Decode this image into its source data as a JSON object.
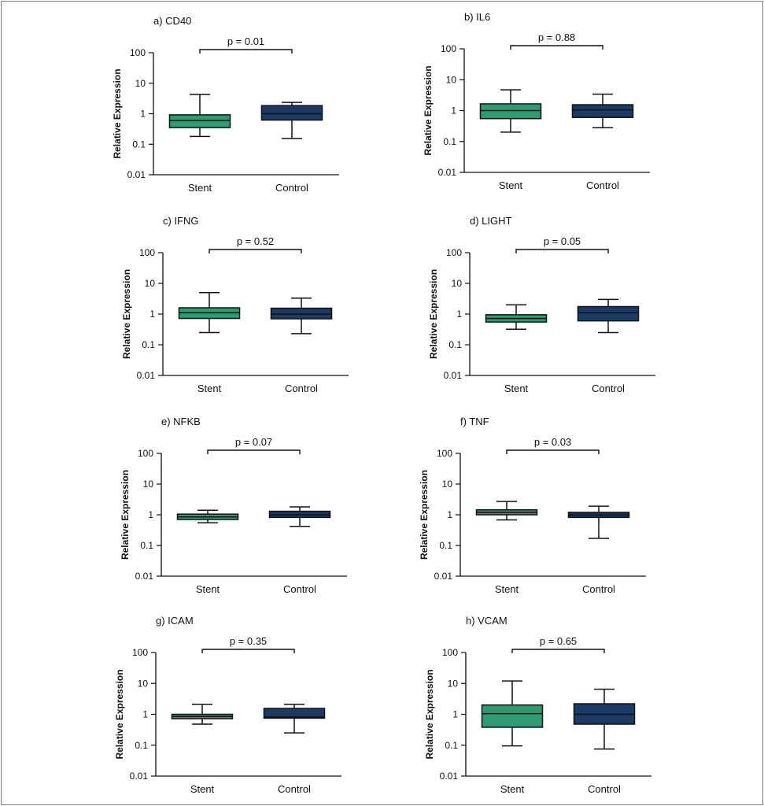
{
  "colors": {
    "stent": "#2f9b73",
    "control": "#1b3a66",
    "ink": "#111111",
    "frame": "#7a7a7a"
  },
  "chart_data": [
    {
      "type": "box",
      "title": "a) CD40",
      "ylabel": "Relative Expression",
      "yscale": "log",
      "ylim": [
        0.01,
        100
      ],
      "yticks": [
        "100",
        "10",
        "1",
        "0.1",
        "0.01"
      ],
      "categories": [
        "Stent",
        "Control"
      ],
      "pvalue": "p = 0.01",
      "series": [
        {
          "category": "Stent",
          "min": 0.18,
          "q1": 0.35,
          "median": 0.6,
          "q3": 0.92,
          "max": 4.3
        },
        {
          "category": "Control",
          "min": 0.155,
          "q1": 0.62,
          "median": 1.0,
          "q3": 1.85,
          "max": 2.35
        }
      ]
    },
    {
      "type": "box",
      "title": "b) IL6",
      "ylabel": "Relative Expression",
      "yscale": "log",
      "ylim": [
        0.01,
        100
      ],
      "yticks": [
        "100",
        "10",
        "1",
        "0.1",
        "0.01"
      ],
      "categories": [
        "Stent",
        "Control"
      ],
      "pvalue": "p = 0.88",
      "series": [
        {
          "category": "Stent",
          "min": 0.2,
          "q1": 0.55,
          "median": 1.0,
          "q3": 1.65,
          "max": 4.7
        },
        {
          "category": "Control",
          "min": 0.28,
          "q1": 0.6,
          "median": 1.05,
          "q3": 1.55,
          "max": 3.4
        }
      ]
    },
    {
      "type": "box",
      "title": "c) IFNG",
      "ylabel": "Relative Expression",
      "yscale": "log",
      "ylim": [
        0.01,
        100
      ],
      "yticks": [
        "100",
        "10",
        "1",
        "0.1",
        "0.01"
      ],
      "categories": [
        "Stent",
        "Control"
      ],
      "pvalue": "p = 0.52",
      "series": [
        {
          "category": "Stent",
          "min": 0.25,
          "q1": 0.72,
          "median": 1.1,
          "q3": 1.6,
          "max": 5.0
        },
        {
          "category": "Control",
          "min": 0.23,
          "q1": 0.7,
          "median": 1.0,
          "q3": 1.55,
          "max": 3.3
        }
      ]
    },
    {
      "type": "box",
      "title": "d) LIGHT",
      "ylabel": "Relative Expression",
      "yscale": "log",
      "ylim": [
        0.01,
        100
      ],
      "yticks": [
        "100",
        "10",
        "1",
        "0.1",
        "0.01"
      ],
      "categories": [
        "Stent",
        "Control"
      ],
      "pvalue": "p = 0.05",
      "series": [
        {
          "category": "Stent",
          "min": 0.32,
          "q1": 0.55,
          "median": 0.72,
          "q3": 0.95,
          "max": 2.0
        },
        {
          "category": "Control",
          "min": 0.25,
          "q1": 0.6,
          "median": 1.1,
          "q3": 1.75,
          "max": 3.0
        }
      ]
    },
    {
      "type": "box",
      "title": "e) NFKB",
      "ylabel": "Relative Expression",
      "yscale": "log",
      "ylim": [
        0.01,
        100
      ],
      "yticks": [
        "100",
        "10",
        "1",
        "0.1",
        "0.01"
      ],
      "categories": [
        "Stent",
        "Control"
      ],
      "pvalue": "p = 0.07",
      "series": [
        {
          "category": "Stent",
          "min": 0.55,
          "q1": 0.7,
          "median": 0.85,
          "q3": 1.05,
          "max": 1.4
        },
        {
          "category": "Control",
          "min": 0.42,
          "q1": 0.82,
          "median": 1.0,
          "q3": 1.3,
          "max": 1.8
        }
      ]
    },
    {
      "type": "box",
      "title": "f) TNF",
      "ylabel": "Relative Expression",
      "yscale": "log",
      "ylim": [
        0.01,
        100
      ],
      "yticks": [
        "100",
        "10",
        "1",
        "0.1",
        "0.01"
      ],
      "categories": [
        "Stent",
        "Control"
      ],
      "pvalue": "p = 0.03",
      "series": [
        {
          "category": "Stent",
          "min": 0.68,
          "q1": 1.0,
          "median": 1.2,
          "q3": 1.45,
          "max": 2.7
        },
        {
          "category": "Control",
          "min": 0.17,
          "q1": 0.82,
          "median": 1.0,
          "q3": 1.2,
          "max": 1.9
        }
      ]
    },
    {
      "type": "box",
      "title": "g) ICAM",
      "ylabel": "Relative Expression",
      "yscale": "log",
      "ylim": [
        0.01,
        100
      ],
      "yticks": [
        "100",
        "10",
        "1",
        "0.1",
        "0.01"
      ],
      "categories": [
        "Stent",
        "Control"
      ],
      "pvalue": "p = 0.35",
      "series": [
        {
          "category": "Stent",
          "min": 0.48,
          "q1": 0.72,
          "median": 0.85,
          "q3": 1.0,
          "max": 2.1
        },
        {
          "category": "Control",
          "min": 0.25,
          "q1": 0.75,
          "median": 0.82,
          "q3": 1.55,
          "max": 2.1
        }
      ]
    },
    {
      "type": "box",
      "title": "h) VCAM",
      "ylabel": "Relative Expression",
      "yscale": "log",
      "ylim": [
        0.01,
        100
      ],
      "yticks": [
        "100",
        "10",
        "1",
        "0.1",
        "0.01"
      ],
      "categories": [
        "Stent",
        "Control"
      ],
      "pvalue": "p = 0.65",
      "series": [
        {
          "category": "Stent",
          "min": 0.095,
          "q1": 0.38,
          "median": 1.05,
          "q3": 2.0,
          "max": 12.0
        },
        {
          "category": "Control",
          "min": 0.075,
          "q1": 0.48,
          "median": 1.0,
          "q3": 2.2,
          "max": 6.5
        }
      ]
    }
  ]
}
